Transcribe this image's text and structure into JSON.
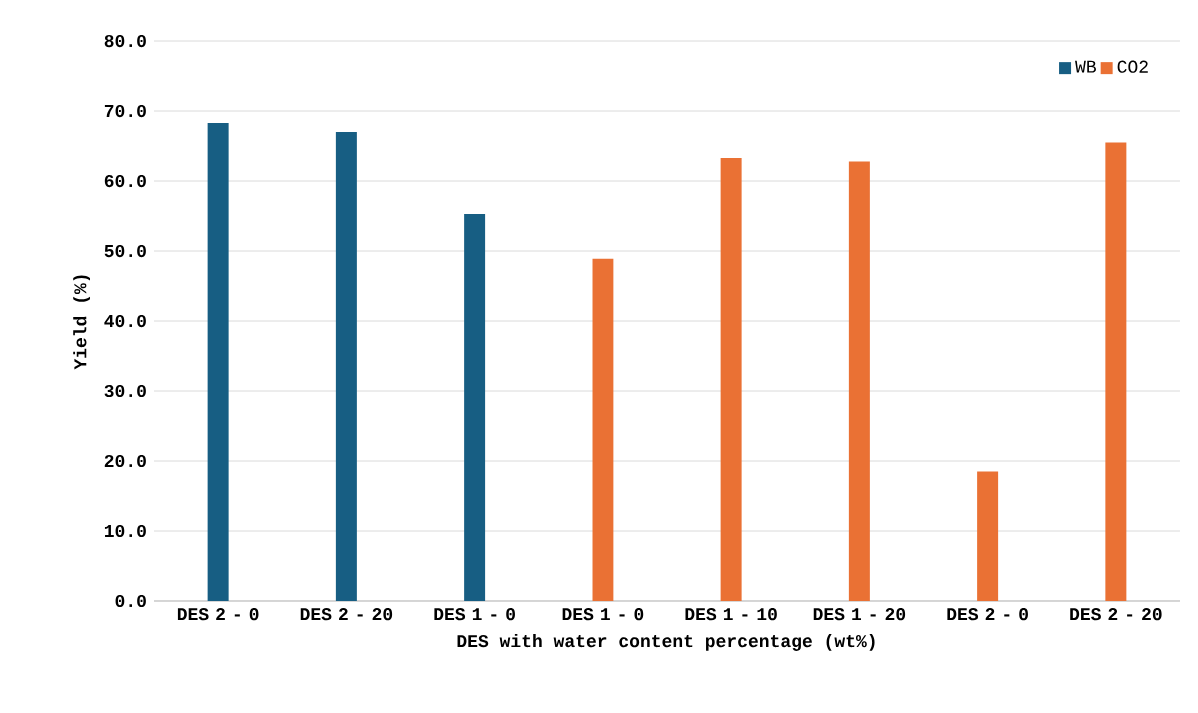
{
  "chart_data": {
    "type": "bar",
    "xlabel": "DES with water content percentage (wt%)",
    "ylabel": "Yield (%)",
    "categories": [
      "DES 2 - 0",
      "DES 2 - 20",
      "DES 1 - 0",
      "DES 1 - 0",
      "DES 1 - 10",
      "DES 1 - 20",
      "DES 2 - 0",
      "DES 2 - 20"
    ],
    "series": [
      {
        "name": "WB",
        "color": "#175e83",
        "values": [
          68.3,
          67.0,
          55.3,
          null,
          null,
          null,
          null,
          null
        ]
      },
      {
        "name": "CO2",
        "color": "#ea7134",
        "values": [
          null,
          null,
          null,
          48.9,
          63.3,
          62.8,
          18.5,
          65.5
        ]
      }
    ],
    "ylim": [
      0,
      80
    ],
    "yticks": [
      {
        "value": 0,
        "label": "0.0"
      },
      {
        "value": 10,
        "label": "10.0"
      },
      {
        "value": 20,
        "label": "20.0"
      },
      {
        "value": 30,
        "label": "30.0"
      },
      {
        "value": 40,
        "label": "40.0"
      },
      {
        "value": 50,
        "label": "50.0"
      },
      {
        "value": 60,
        "label": "60.0"
      },
      {
        "value": 70,
        "label": "70.0"
      },
      {
        "value": 80,
        "label": "80.0"
      }
    ],
    "grid": "y",
    "legend": "top right"
  }
}
